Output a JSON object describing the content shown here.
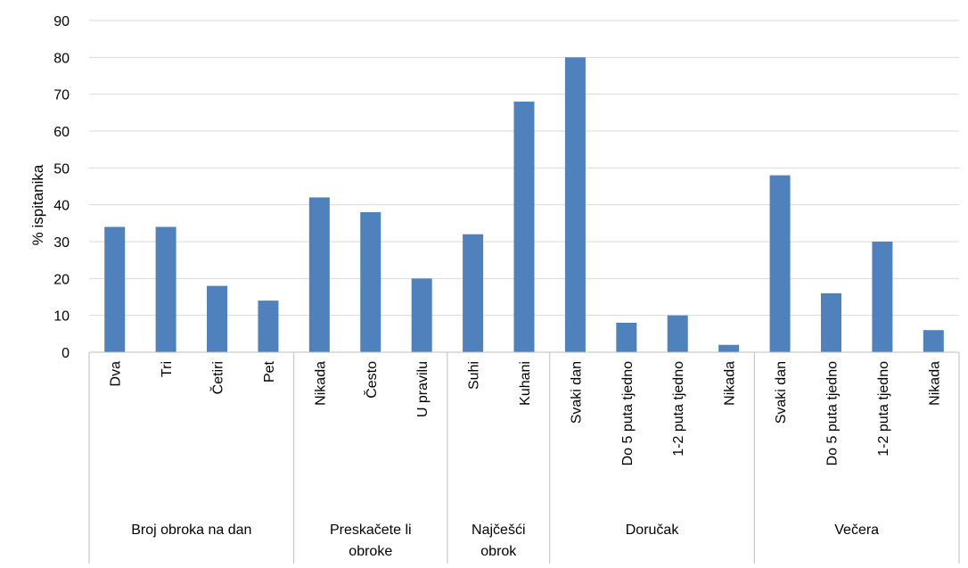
{
  "chart_data": {
    "type": "bar",
    "ylabel": "% ispitanika",
    "ylim": [
      0,
      90
    ],
    "yticks": [
      0,
      10,
      20,
      30,
      40,
      50,
      60,
      70,
      80,
      90
    ],
    "grid": true,
    "legend": "none",
    "bar_color": "#4f81bd",
    "grid_color": "#d9d9d9",
    "axis_color": "#bfbfbf",
    "groups": [
      {
        "label": "Broj obroka na dan",
        "categories": [
          "Dva",
          "Tri",
          "Četiri",
          "Pet"
        ],
        "values": [
          34,
          34,
          18,
          14
        ]
      },
      {
        "label": "Preskačete li obroke",
        "categories": [
          "Nikada",
          "Često",
          "U pravilu"
        ],
        "values": [
          42,
          38,
          20
        ]
      },
      {
        "label": "Najčešći obrok",
        "categories": [
          "Suhi",
          "Kuhani"
        ],
        "values": [
          32,
          68
        ]
      },
      {
        "label": "Doručak",
        "categories": [
          "Svaki dan",
          "Do 5 puta tjedno",
          "1-2 puta tjedno",
          "Nikada"
        ],
        "values": [
          80,
          8,
          10,
          2
        ]
      },
      {
        "label": "Večera",
        "categories": [
          "Svaki dan",
          "Do 5 puta tjedno",
          "1-2 puta tjedno",
          "Nikada"
        ],
        "values": [
          48,
          16,
          30,
          6
        ]
      }
    ]
  }
}
